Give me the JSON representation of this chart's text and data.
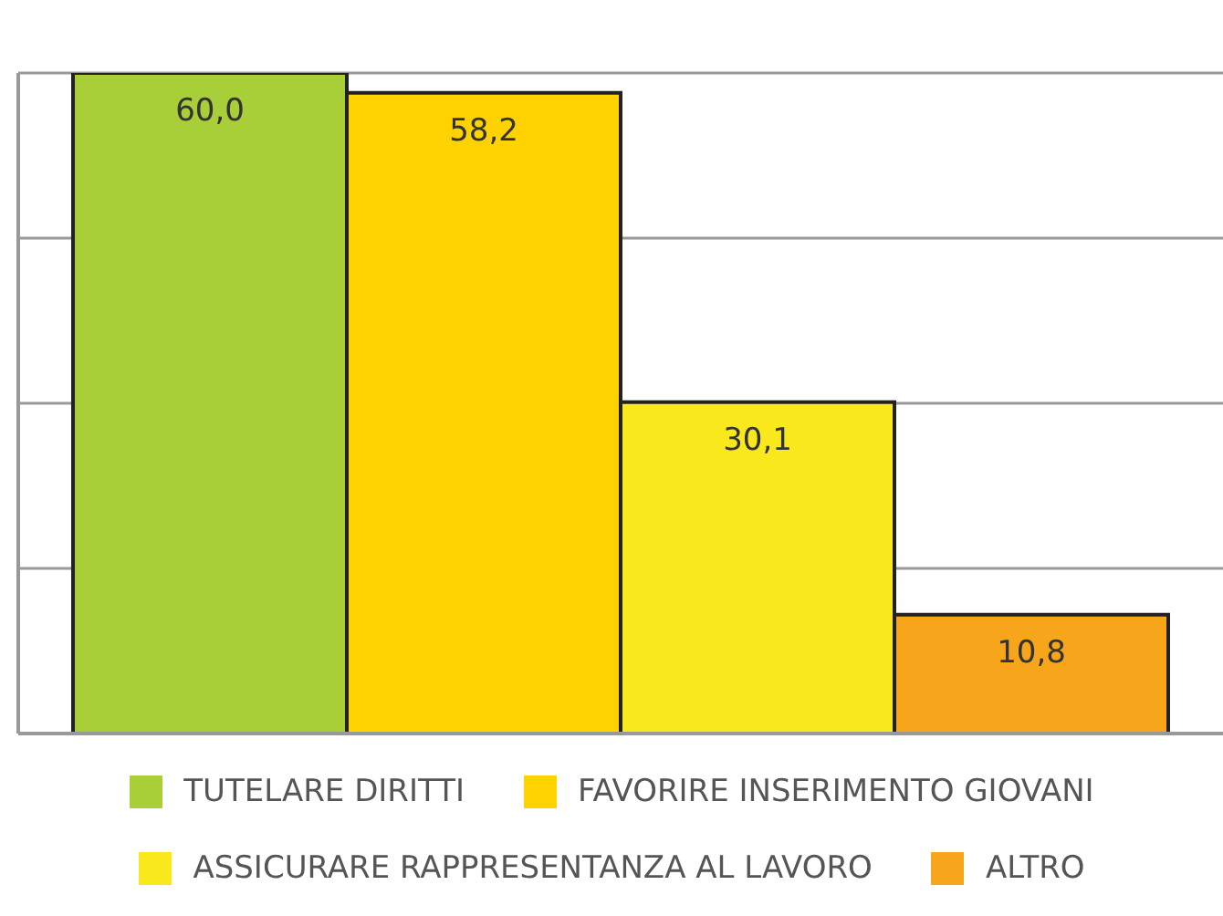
{
  "chart_data": {
    "type": "bar",
    "categories": [
      null
    ],
    "series": [
      {
        "name": "TUTELARE DIRITTI",
        "color": "#a8cf38",
        "values": [
          60.0
        ],
        "value_labels": [
          "60,0"
        ]
      },
      {
        "name": "FAVORIRE INSERIMENTO GIOVANI",
        "color": "#ffd200",
        "values": [
          58.2
        ],
        "value_labels": [
          "58,2"
        ]
      },
      {
        "name": "ASSICURARE RAPPRESENTANZA AL LAVORO",
        "color": "#f8e81c",
        "values": [
          30.1
        ],
        "value_labels": [
          "30,1"
        ]
      },
      {
        "name": "ALTRO",
        "color": "#f7a51b",
        "values": [
          10.8
        ],
        "value_labels": [
          "10,8"
        ]
      }
    ],
    "grid": "y",
    "tick_labels": false,
    "legend": "bottom"
  }
}
